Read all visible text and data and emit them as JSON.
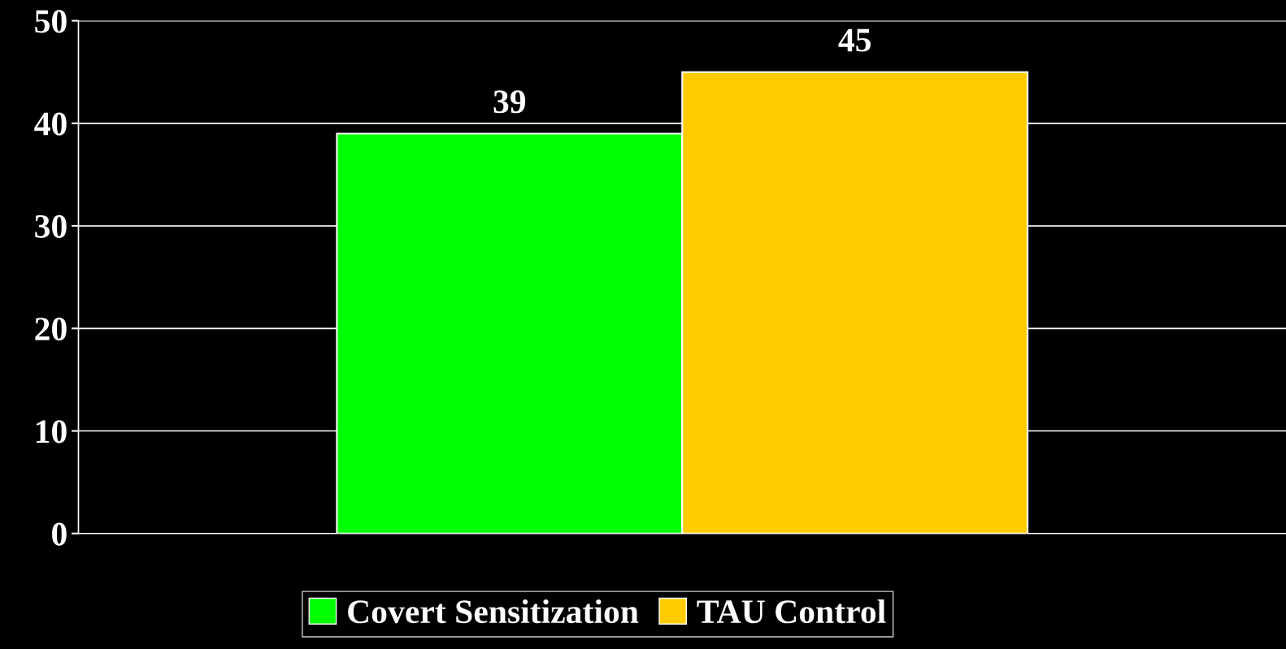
{
  "chart_data": {
    "type": "bar",
    "categories": [
      null
    ],
    "series": [
      {
        "name": "Covert Sensitization",
        "color": "#00ff00",
        "values": [
          39
        ]
      },
      {
        "name": "TAU Control",
        "color": "#ffcc00",
        "values": [
          45
        ]
      }
    ],
    "ylim": [
      0,
      50
    ],
    "yticks": [
      0,
      10,
      20,
      30,
      40,
      50
    ],
    "grid": "y",
    "legend": "bottom",
    "data_labels": true
  }
}
